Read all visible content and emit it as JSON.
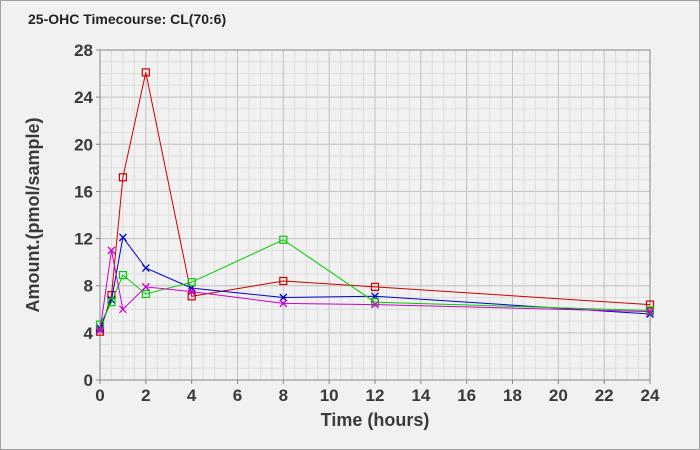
{
  "chart_data": {
    "type": "line",
    "title": "25-OHC Timecourse: CL(70:6)",
    "xlabel": "Time (hours)",
    "ylabel": "Amount.(pmol/sample)",
    "xlim": [
      0,
      24
    ],
    "ylim": [
      0,
      28
    ],
    "x_ticks": [
      "0",
      "2",
      "4",
      "6",
      "8",
      "10",
      "12",
      "14",
      "16",
      "18",
      "20",
      "22",
      "24"
    ],
    "y_ticks": [
      "0",
      "4",
      "8",
      "12",
      "16",
      "20",
      "24",
      "28"
    ],
    "grid": true,
    "series": [
      {
        "color": "#cc0000",
        "marker": "square",
        "x": [
          0,
          0.5,
          1,
          2,
          4,
          8,
          12,
          24
        ],
        "y": [
          4.1,
          7.2,
          17.2,
          26.1,
          7.1,
          8.4,
          7.9,
          6.4
        ]
      },
      {
        "color": "#0000cc",
        "marker": "x",
        "x": [
          0,
          0.5,
          1,
          2,
          4,
          8,
          12,
          24
        ],
        "y": [
          4.4,
          6.8,
          12.1,
          9.5,
          7.8,
          7.0,
          7.1,
          5.6
        ]
      },
      {
        "color": "#00cc00",
        "marker": "square",
        "x": [
          0,
          0.5,
          1,
          2,
          4,
          8,
          12,
          24
        ],
        "y": [
          4.7,
          6.6,
          8.9,
          7.3,
          8.3,
          11.9,
          6.6,
          5.9
        ]
      },
      {
        "color": "#cc00cc",
        "marker": "x",
        "x": [
          0,
          0.5,
          1,
          2,
          4,
          8,
          12,
          24
        ],
        "y": [
          4.2,
          11.0,
          6.0,
          7.9,
          7.5,
          6.5,
          6.4,
          5.8
        ]
      }
    ]
  }
}
